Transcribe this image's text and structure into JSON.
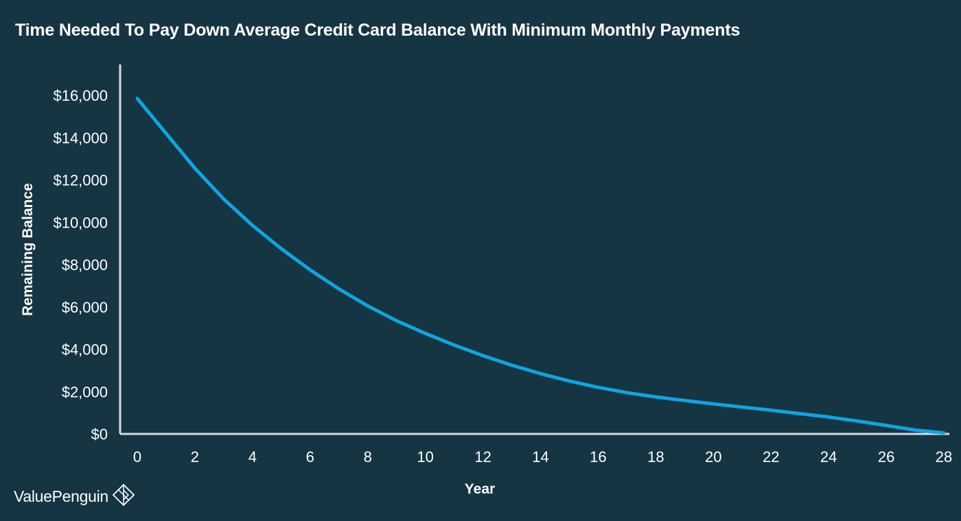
{
  "brand": {
    "name": "ValuePenguin",
    "logo_icon": "penguin-diamond-icon"
  },
  "colors": {
    "background": "#163543",
    "line": "#0ea5e0",
    "text": "#ffffff",
    "axis": "#d9dde0"
  },
  "chart_data": {
    "type": "line",
    "title": "Time Needed To Pay Down Average Credit Card Balance With Minimum Monthly Payments",
    "xlabel": "Year",
    "ylabel": "Remaining Balance",
    "xlim": [
      0,
      28
    ],
    "ylim": [
      0,
      16000
    ],
    "x_ticks": [
      "0",
      "2",
      "4",
      "6",
      "8",
      "10",
      "12",
      "14",
      "16",
      "18",
      "20",
      "22",
      "24",
      "26",
      "28"
    ],
    "y_ticks": [
      "$0",
      "$2,000",
      "$4,000",
      "$6,000",
      "$8,000",
      "$10,000",
      "$12,000",
      "$14,000",
      "$16,000"
    ],
    "grid": false,
    "legend": "none",
    "series": [
      {
        "x": [
          0,
          1,
          2,
          3,
          4,
          5,
          6,
          7,
          8,
          9,
          10,
          11,
          12,
          13,
          14,
          15,
          16,
          17,
          18,
          19,
          20,
          21,
          22,
          23,
          24,
          25,
          26,
          27,
          28
        ],
        "values": [
          15850,
          14200,
          12550,
          11100,
          9850,
          8750,
          7750,
          6850,
          6050,
          5350,
          4750,
          4200,
          3700,
          3250,
          2850,
          2500,
          2200,
          1950,
          1750,
          1580,
          1420,
          1270,
          1120,
          960,
          800,
          610,
          400,
          180,
          50
        ]
      }
    ]
  }
}
